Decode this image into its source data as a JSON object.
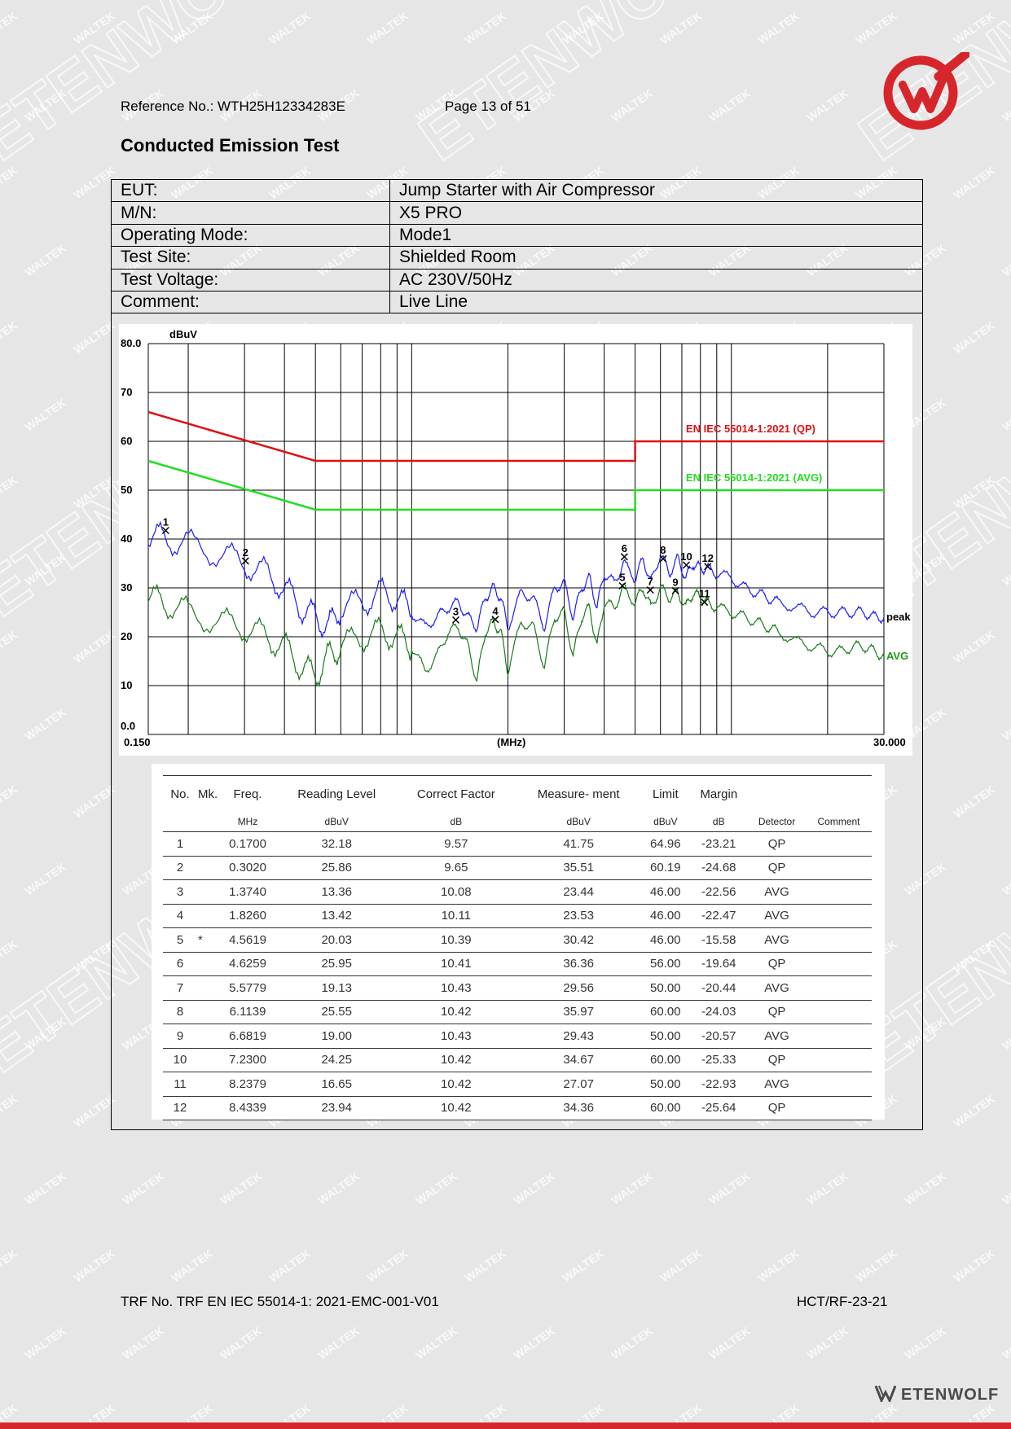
{
  "header": {
    "reference": "Reference No.: WTH25H12334283E",
    "page": "Page 13 of 51"
  },
  "title": "Conducted Emission Test",
  "info": [
    {
      "key": "EUT:",
      "value": "Jump Starter with Air Compressor"
    },
    {
      "key": "M/N:",
      "value": "X5 PRO"
    },
    {
      "key": "Operating Mode:",
      "value": "Mode1"
    },
    {
      "key": "Test Site:",
      "value": "Shielded Room"
    },
    {
      "key": "Test Voltage:",
      "value": "AC 230V/50Hz"
    },
    {
      "key": "Comment:",
      "value": "Live Line"
    }
  ],
  "colors": {
    "qp_limit": "#e01010",
    "avg_limit": "#22dd22",
    "peak": "#1a1aff",
    "avg": "#1a7a1a",
    "brand_red": "#d7262b"
  },
  "chart_data": {
    "type": "line",
    "ylabel": "dBuV",
    "xlabel": "(MHz)",
    "x_scale": "log",
    "xlim": [
      0.15,
      30
    ],
    "ylim": [
      0,
      80
    ],
    "x_tick_labels": [
      "0.150",
      "30.000"
    ],
    "y_tick_labels": [
      "80.0",
      "70",
      "60",
      "50",
      "40",
      "30",
      "20",
      "10",
      "0.0"
    ],
    "grid": true,
    "series_labels": {
      "peak": "peak",
      "avg": "AVG"
    },
    "limits": [
      {
        "name": "EN IEC 55014-1:2021 (QP)",
        "x": [
          0.15,
          0.5,
          0.5,
          5,
          5,
          30
        ],
        "y": [
          66,
          56,
          56,
          56,
          60,
          60
        ]
      },
      {
        "name": "EN IEC 55014-1:2021 (AVG)",
        "x": [
          0.15,
          0.5,
          0.5,
          5,
          5,
          30
        ],
        "y": [
          56,
          46,
          46,
          46,
          50,
          50
        ]
      }
    ],
    "peak": {
      "x": [
        0.15,
        0.17,
        0.2,
        0.25,
        0.3,
        0.35,
        0.4,
        0.45,
        0.5,
        0.55,
        0.6,
        0.7,
        0.8,
        0.9,
        1.0,
        1.1,
        1.2,
        1.3,
        1.4,
        1.5,
        1.6,
        1.7,
        1.8,
        1.9,
        2.0,
        2.2,
        2.4,
        2.6,
        2.8,
        3.0,
        3.2,
        3.4,
        3.6,
        3.8,
        4.0,
        4.3,
        4.6,
        5.0,
        5.3,
        5.6,
        6.0,
        6.4,
        6.8,
        7.2,
        7.6,
        8.0,
        8.4,
        9.0,
        10,
        11,
        12,
        13,
        14,
        16,
        18,
        20,
        22,
        24,
        26,
        28,
        30
      ],
      "y": [
        41,
        40,
        39,
        37,
        35,
        33,
        30,
        26,
        24,
        22,
        26,
        27,
        29,
        28,
        25,
        22,
        24,
        26,
        27,
        24,
        22,
        28,
        30,
        28,
        22,
        29,
        28,
        22,
        30,
        31,
        24,
        30,
        32,
        26,
        33,
        31,
        35,
        32,
        36,
        31,
        37,
        33,
        36,
        32,
        35,
        34,
        34,
        33,
        32,
        30,
        29,
        28,
        27,
        26,
        25,
        25,
        25,
        25,
        25,
        24,
        24
      ]
    },
    "avg": {
      "x": [
        0.15,
        0.17,
        0.2,
        0.25,
        0.3,
        0.35,
        0.4,
        0.45,
        0.5,
        0.55,
        0.6,
        0.7,
        0.8,
        0.9,
        1.0,
        1.1,
        1.2,
        1.3,
        1.4,
        1.5,
        1.6,
        1.7,
        1.8,
        1.9,
        2.0,
        2.2,
        2.4,
        2.6,
        2.8,
        3.0,
        3.2,
        3.4,
        3.6,
        3.8,
        4.0,
        4.3,
        4.6,
        5.0,
        5.3,
        5.6,
        6.0,
        6.4,
        6.8,
        7.2,
        7.6,
        8.0,
        8.4,
        9.0,
        10,
        11,
        12,
        13,
        14,
        16,
        18,
        20,
        22,
        24,
        26,
        28,
        30
      ],
      "y": [
        28,
        27,
        25,
        23,
        22,
        20,
        18,
        14,
        12,
        16,
        18,
        20,
        21,
        20,
        18,
        13,
        16,
        21,
        22,
        18,
        11,
        21,
        23,
        21,
        13,
        23,
        22,
        14,
        24,
        25,
        16,
        24,
        26,
        18,
        27,
        26,
        30,
        27,
        30,
        26,
        30,
        28,
        29,
        26,
        29,
        28,
        27,
        26,
        25,
        24,
        23,
        22,
        21,
        19,
        18,
        17,
        17,
        18,
        18,
        17,
        16
      ]
    },
    "markers": [
      {
        "label": "1",
        "x": 0.17,
        "y": 41.75
      },
      {
        "label": "2",
        "x": 0.302,
        "y": 35.51
      },
      {
        "label": "3",
        "x": 1.374,
        "y": 23.44
      },
      {
        "label": "4",
        "x": 1.826,
        "y": 23.53
      },
      {
        "label": "5",
        "x": 4.5619,
        "y": 30.42
      },
      {
        "label": "6",
        "x": 4.6259,
        "y": 36.36
      },
      {
        "label": "7",
        "x": 5.5779,
        "y": 29.56
      },
      {
        "label": "8",
        "x": 6.1139,
        "y": 35.97
      },
      {
        "label": "9",
        "x": 6.6819,
        "y": 29.43
      },
      {
        "label": "10",
        "x": 7.23,
        "y": 34.67
      },
      {
        "label": "11",
        "x": 8.2379,
        "y": 27.07
      },
      {
        "label": "12",
        "x": 8.4339,
        "y": 34.36
      }
    ]
  },
  "results": {
    "headers": [
      {
        "top": "No.",
        "unit": ""
      },
      {
        "top": "Mk.",
        "unit": ""
      },
      {
        "top": "Freq.",
        "unit": "MHz"
      },
      {
        "top": "Reading Level",
        "unit": "dBuV"
      },
      {
        "top": "Correct Factor",
        "unit": "dB"
      },
      {
        "top": "Measure- ment",
        "unit": "dBuV"
      },
      {
        "top": "Limit",
        "unit": "dBuV"
      },
      {
        "top": "Margin",
        "unit": "dB"
      },
      {
        "top": "",
        "unit": "Detector"
      },
      {
        "top": "",
        "unit": "Comment"
      }
    ],
    "rows": [
      [
        "1",
        "",
        "0.1700",
        "32.18",
        "9.57",
        "41.75",
        "64.96",
        "-23.21",
        "QP",
        ""
      ],
      [
        "2",
        "",
        "0.3020",
        "25.86",
        "9.65",
        "35.51",
        "60.19",
        "-24.68",
        "QP",
        ""
      ],
      [
        "3",
        "",
        "1.3740",
        "13.36",
        "10.08",
        "23.44",
        "46.00",
        "-22.56",
        "AVG",
        ""
      ],
      [
        "4",
        "",
        "1.8260",
        "13.42",
        "10.11",
        "23.53",
        "46.00",
        "-22.47",
        "AVG",
        ""
      ],
      [
        "5",
        "*",
        "4.5619",
        "20.03",
        "10.39",
        "30.42",
        "46.00",
        "-15.58",
        "AVG",
        ""
      ],
      [
        "6",
        "",
        "4.6259",
        "25.95",
        "10.41",
        "36.36",
        "56.00",
        "-19.64",
        "QP",
        ""
      ],
      [
        "7",
        "",
        "5.5779",
        "19.13",
        "10.43",
        "29.56",
        "50.00",
        "-20.44",
        "AVG",
        ""
      ],
      [
        "8",
        "",
        "6.1139",
        "25.55",
        "10.42",
        "35.97",
        "60.00",
        "-24.03",
        "QP",
        ""
      ],
      [
        "9",
        "",
        "6.6819",
        "19.00",
        "10.43",
        "29.43",
        "50.00",
        "-20.57",
        "AVG",
        ""
      ],
      [
        "10",
        "",
        "7.2300",
        "24.25",
        "10.42",
        "34.67",
        "60.00",
        "-25.33",
        "QP",
        ""
      ],
      [
        "11",
        "",
        "8.2379",
        "16.65",
        "10.42",
        "27.07",
        "50.00",
        "-22.93",
        "AVG",
        ""
      ],
      [
        "12",
        "",
        "8.4339",
        "23.94",
        "10.42",
        "34.36",
        "60.00",
        "-25.64",
        "QP",
        ""
      ]
    ]
  },
  "footer": {
    "trf": "TRF No. TRF EN IEC 55014-1: 2021-EMC-001-V01",
    "code": "HCT/RF-23-21"
  },
  "brand": {
    "name": "ETENWOLF"
  },
  "watermarks": {
    "small": "WALTEK",
    "large": "ETENWOLF"
  }
}
